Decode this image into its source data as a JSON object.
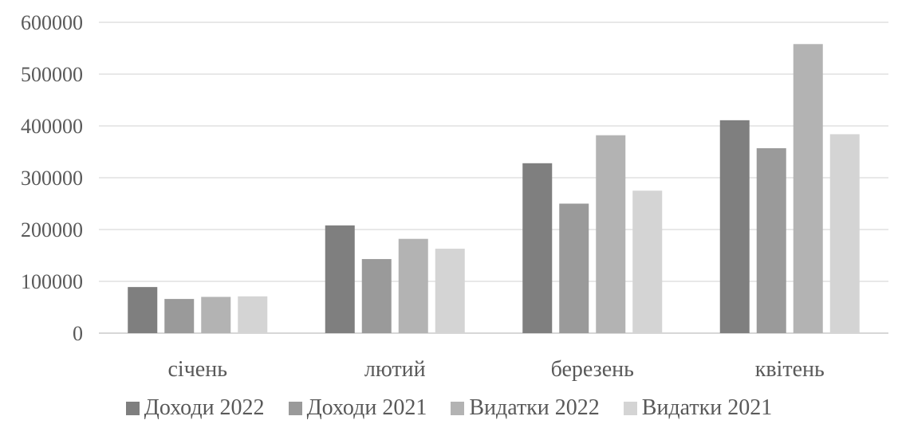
{
  "chart_data": {
    "type": "bar",
    "categories": [
      "січень",
      "лютий",
      "березень",
      "квітень"
    ],
    "series": [
      {
        "name": "Доходи 2022",
        "color": "#7f7f7f",
        "values": [
          89000,
          208000,
          328000,
          411000
        ]
      },
      {
        "name": "Доходи 2021",
        "color": "#9a9a9a",
        "values": [
          66000,
          143000,
          250000,
          357000
        ]
      },
      {
        "name": "Видатки 2022",
        "color": "#b3b3b3",
        "values": [
          70000,
          182000,
          382000,
          558000
        ]
      },
      {
        "name": "Видатки 2021",
        "color": "#d4d4d4",
        "values": [
          71000,
          163000,
          275000,
          384000
        ]
      }
    ],
    "ylim": [
      0,
      600000
    ],
    "yticks": [
      "0",
      "100000",
      "200000",
      "300000",
      "400000",
      "500000",
      "600000"
    ],
    "grid": true,
    "legend_position": "bottom"
  }
}
